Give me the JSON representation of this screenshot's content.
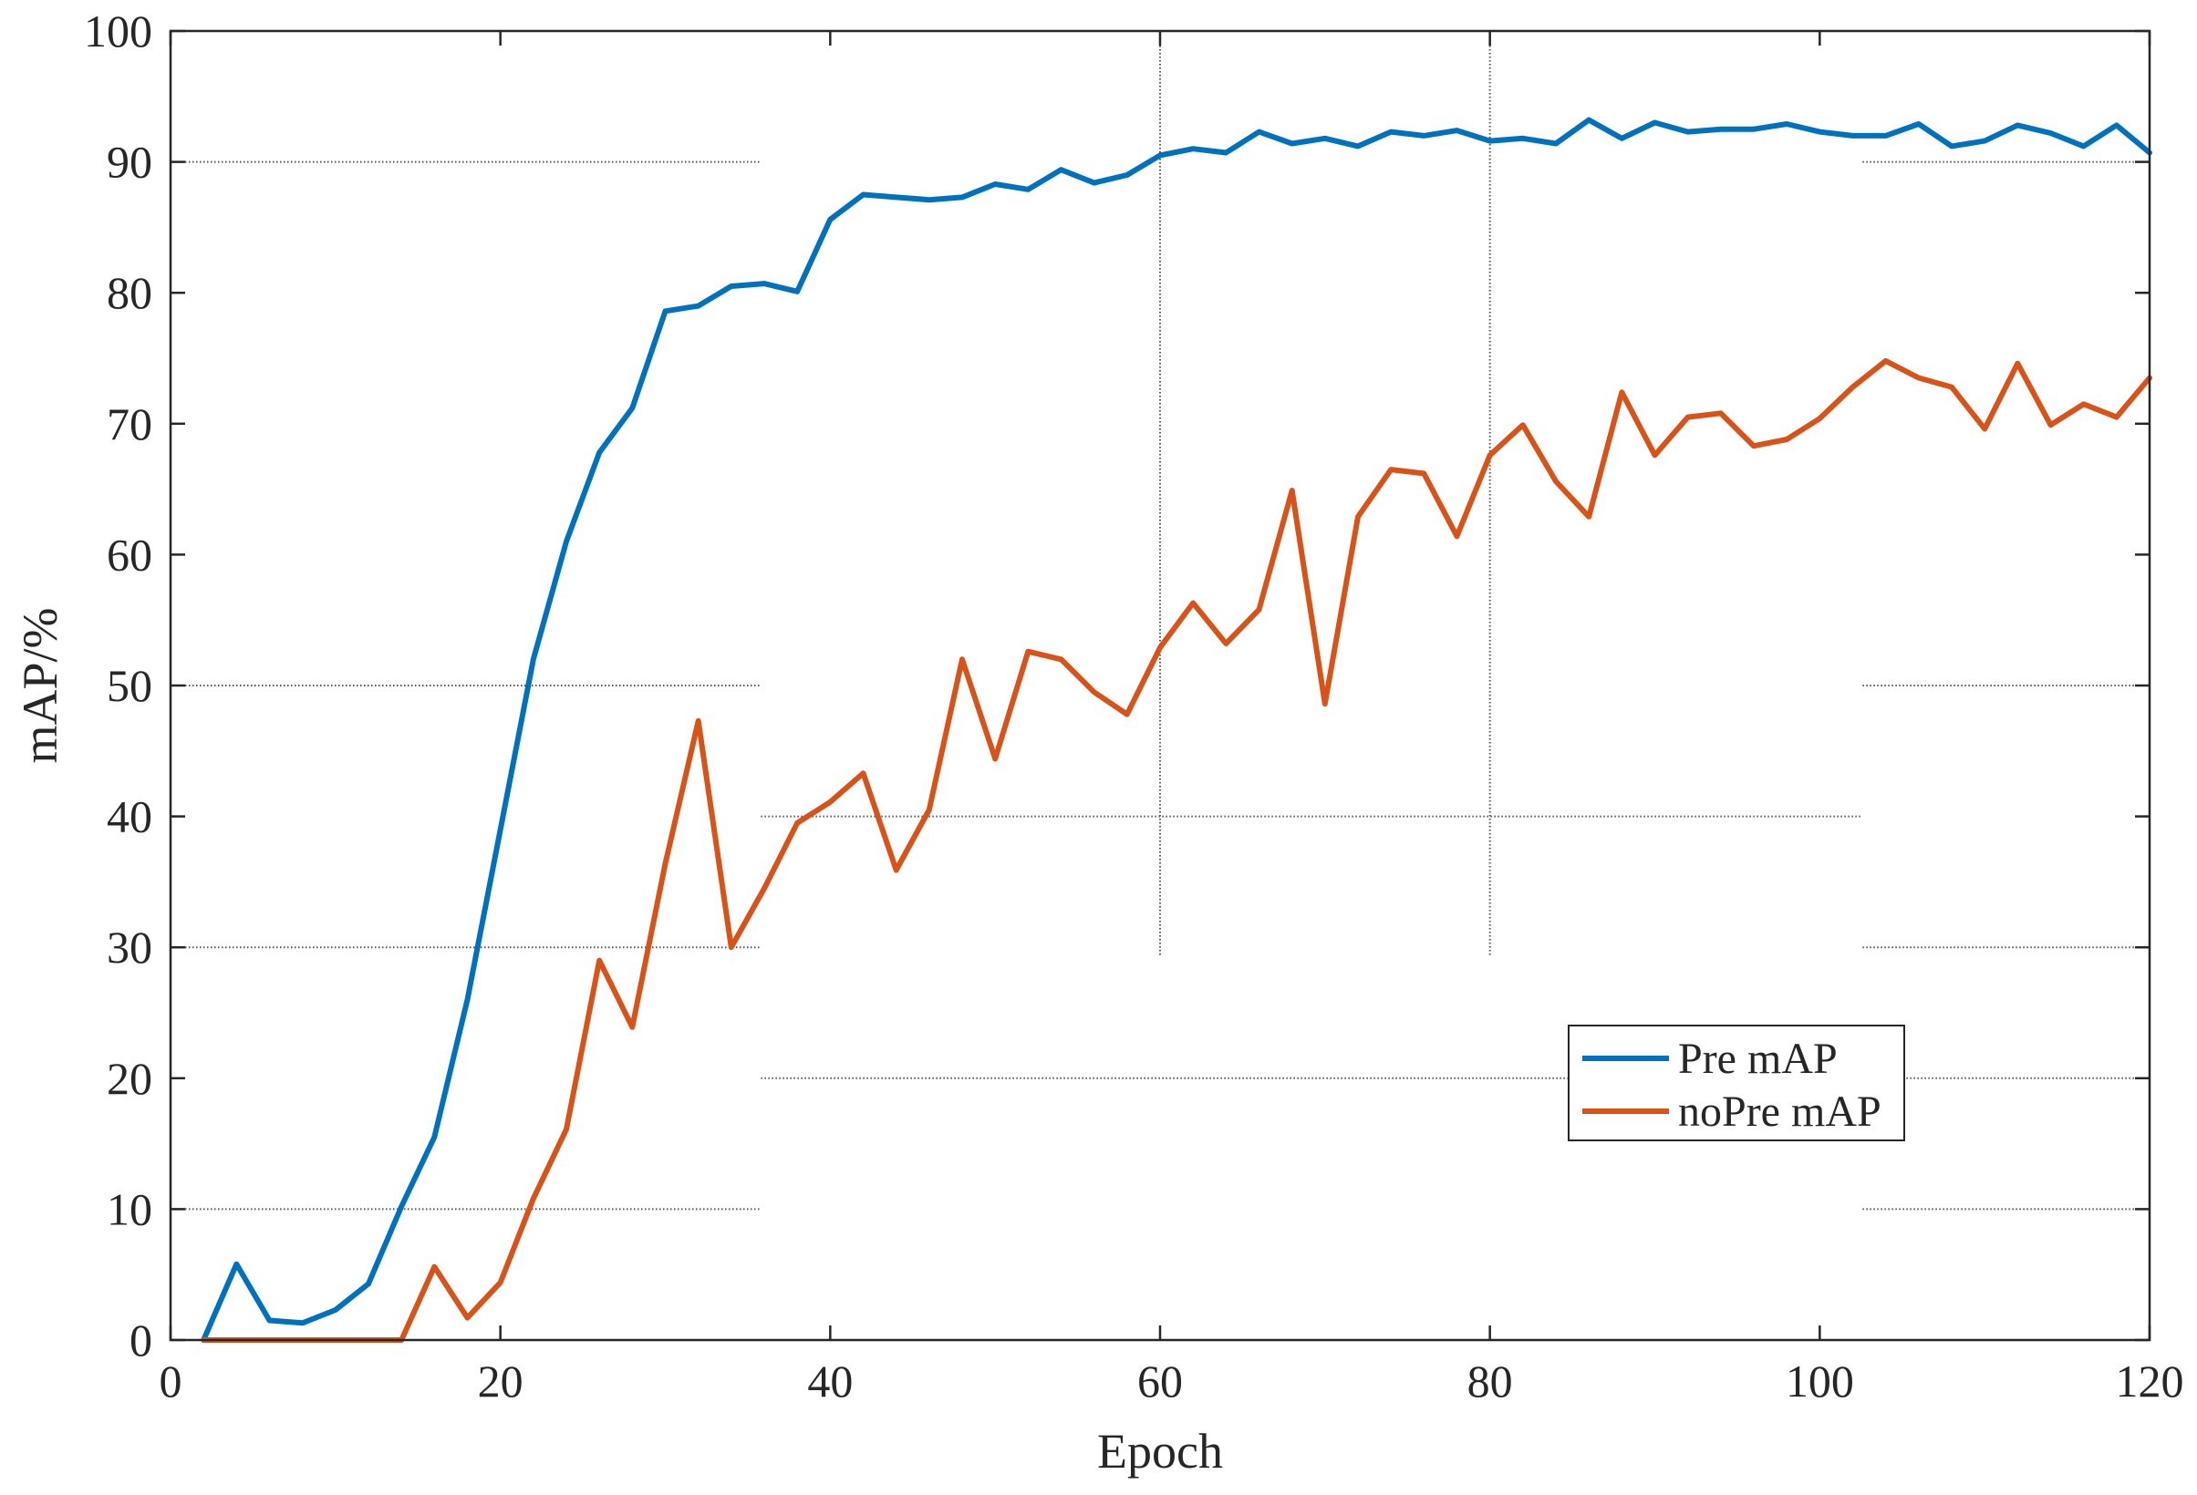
{
  "chart_data": {
    "type": "line",
    "title": "",
    "xlabel": "Epoch",
    "ylabel": "mAP/%",
    "xlim": [
      0,
      120
    ],
    "ylim": [
      0,
      100
    ],
    "xticks": [
      0,
      20,
      40,
      60,
      80,
      100,
      120
    ],
    "yticks": [
      0,
      10,
      20,
      30,
      40,
      50,
      60,
      70,
      80,
      90,
      100
    ],
    "grid": "partial dotted gridlines",
    "legend_position": "lower-right",
    "x": [
      2,
      4,
      6,
      8,
      10,
      12,
      14,
      16,
      18,
      20,
      22,
      24,
      26,
      28,
      30,
      32,
      34,
      36,
      38,
      40,
      42,
      44,
      46,
      48,
      50,
      52,
      54,
      56,
      58,
      60,
      62,
      64,
      66,
      68,
      70,
      72,
      74,
      76,
      78,
      80,
      82,
      84,
      86,
      88,
      90,
      92,
      94,
      96,
      98,
      100,
      102,
      104,
      106,
      108,
      110,
      112,
      114,
      116,
      118,
      120
    ],
    "series": [
      {
        "name": "Pre mAP",
        "color": "#0072BD",
        "values": [
          0,
          5.8,
          1.5,
          1.3,
          2.3,
          4.3,
          10.2,
          15.5,
          26,
          39,
          52,
          61,
          67.8,
          71.2,
          78.6,
          79,
          80.5,
          80.7,
          80.1,
          85.6,
          87.5,
          87.3,
          87.1,
          87.3,
          88.3,
          87.9,
          89.4,
          88.4,
          89,
          90.5,
          91,
          90.7,
          92.3,
          91.4,
          91.8,
          91.2,
          92.3,
          92,
          92.4,
          91.6,
          91.8,
          91.4,
          93.2,
          91.8,
          93,
          92.3,
          92.5,
          92.5,
          92.9,
          92.3,
          92,
          92,
          92.9,
          91.2,
          91.6,
          92.8,
          92.2,
          91.2,
          92.8,
          90.7
        ]
      },
      {
        "name": "noPre mAP",
        "color": "#D95319",
        "values": [
          0,
          0,
          0,
          0,
          0,
          0,
          0,
          5.6,
          1.7,
          4.4,
          10.8,
          16.1,
          29,
          23.9,
          36.4,
          47.3,
          30,
          34.5,
          39.5,
          41.1,
          43.3,
          35.9,
          40.5,
          52,
          44.4,
          52.6,
          52,
          49.5,
          47.8,
          52.9,
          56.3,
          53.2,
          55.8,
          64.9,
          48.6,
          62.9,
          66.5,
          66.2,
          61.4,
          67.6,
          69.9,
          65.6,
          62.9,
          72.4,
          67.6,
          70.5,
          70.8,
          68.3,
          68.8,
          70.4,
          72.8,
          74.8,
          73.5,
          72.8,
          69.6,
          74.6,
          69.9,
          71.5,
          70.5,
          73.5
        ]
      }
    ]
  }
}
